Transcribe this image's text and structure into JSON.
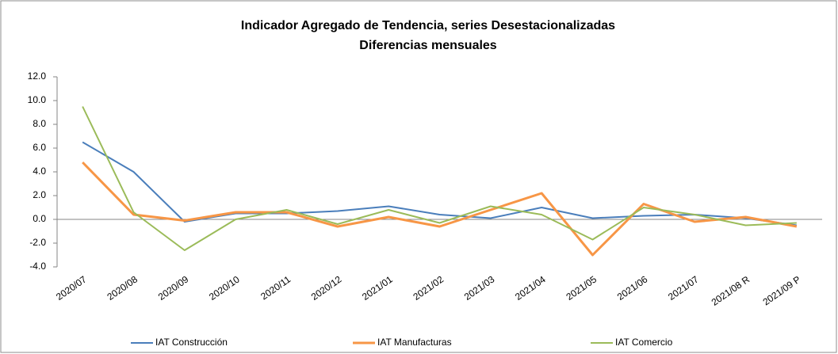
{
  "chart_data": {
    "type": "line",
    "title": "Indicador Agregado de Tendencia, series Desestacionalizadas",
    "subtitle": "Diferencias mensuales",
    "categories": [
      "2020/07",
      "2020/08",
      "2020/09",
      "2020/10",
      "2020/11",
      "2020/12",
      "2021/01",
      "2021/02",
      "2021/03",
      "2021/04",
      "2021/05",
      "2021/06",
      "2021/07",
      "2021/08 R",
      "2021/09 P"
    ],
    "series": [
      {
        "name": "IAT Construcción",
        "color": "#4a7ebb",
        "values": [
          6.5,
          4.0,
          -0.2,
          0.5,
          0.5,
          0.7,
          1.1,
          0.4,
          0.1,
          1.0,
          0.1,
          0.3,
          0.4,
          0.1,
          -0.5
        ]
      },
      {
        "name": "IAT Manufacturas",
        "color": "#f79646",
        "values": [
          4.8,
          0.4,
          -0.1,
          0.6,
          0.6,
          -0.6,
          0.2,
          -0.6,
          0.8,
          2.2,
          -3.0,
          1.3,
          -0.2,
          0.2,
          -0.6
        ]
      },
      {
        "name": "IAT Comercio",
        "color": "#9bbb59",
        "values": [
          9.5,
          0.6,
          -2.6,
          0.0,
          0.8,
          -0.4,
          0.8,
          -0.3,
          1.1,
          0.4,
          -1.7,
          1.0,
          0.4,
          -0.5,
          -0.3
        ]
      }
    ],
    "ylim": [
      -4,
      12
    ],
    "yticks": [
      {
        "value": -4,
        "label": "-4.0"
      },
      {
        "value": -2,
        "label": "-2.0"
      },
      {
        "value": 0,
        "label": "0.0"
      },
      {
        "value": 2,
        "label": "2.0"
      },
      {
        "value": 4,
        "label": "4.0"
      },
      {
        "value": 6,
        "label": "6.0"
      },
      {
        "value": 8,
        "label": "8.0"
      },
      {
        "value": 10,
        "label": "10.0"
      },
      {
        "value": 12,
        "label": "12.0"
      }
    ],
    "legend": "bottom"
  }
}
